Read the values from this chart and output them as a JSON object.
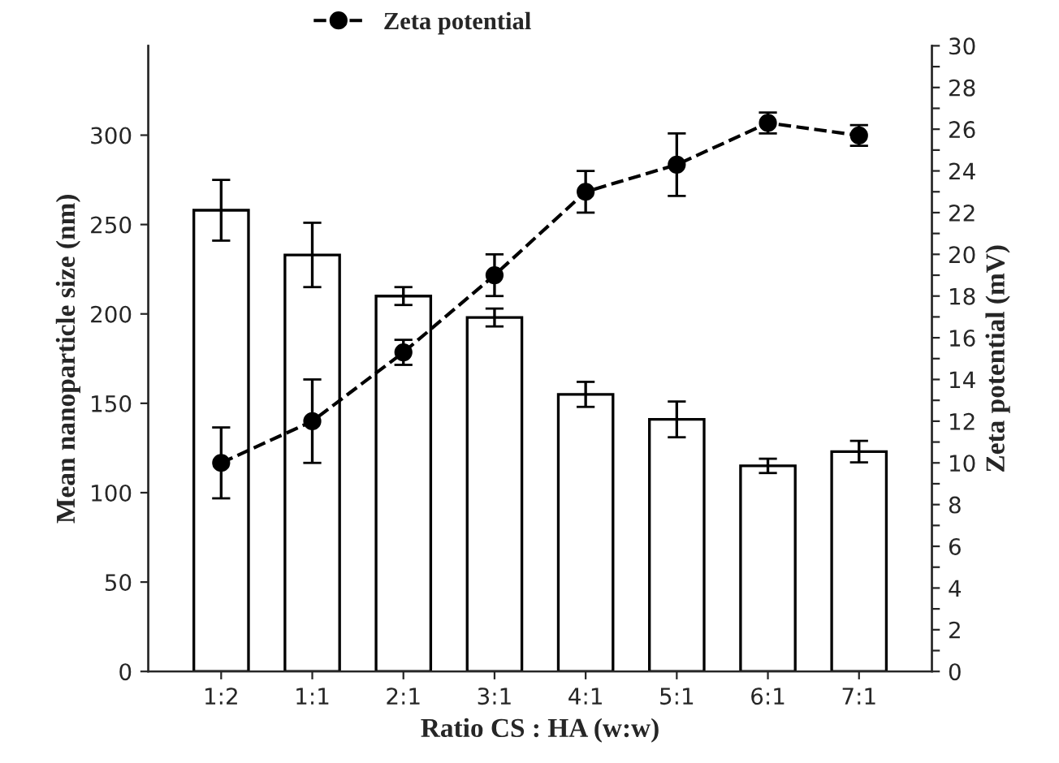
{
  "chart_data": {
    "type": "bar",
    "xlabel": "Ratio CS : HA (w:w)",
    "ylabel": "Mean nanoparticle size (nm)",
    "y2label": "Zeta potential (mV)",
    "categories": [
      "1:2",
      "1:1",
      "2:1",
      "3:1",
      "4:1",
      "5:1",
      "6:1",
      "7:1"
    ],
    "series": [
      {
        "color": "#ffffff",
        "values": [
          258,
          233,
          210,
          198,
          155,
          141,
          115,
          123
        ],
        "errors": [
          17,
          18,
          5,
          5,
          7,
          10,
          4,
          6
        ]
      },
      {
        "type": "line",
        "name": "Zeta potential",
        "axis": "y2",
        "color": "#000000",
        "marker": "circle",
        "line_style": "dashed",
        "values": [
          10.0,
          12.0,
          15.3,
          19.0,
          23.0,
          24.3,
          26.3,
          25.7
        ],
        "errors": [
          1.7,
          2.0,
          0.6,
          1.0,
          1.0,
          1.5,
          0.5,
          0.5
        ]
      }
    ],
    "ylim": [
      0,
      350
    ],
    "yticks": [
      0,
      50,
      100,
      150,
      200,
      250,
      300
    ],
    "y2lim": [
      0,
      30
    ],
    "y2ticks": [
      0,
      {
        "value": 1,
        "label": null
      },
      2,
      {
        "value": 3,
        "label": null
      },
      4,
      {
        "value": 5,
        "label": null
      },
      6,
      {
        "value": 7,
        "label": null
      },
      8,
      {
        "value": 9,
        "label": null
      },
      10,
      {
        "value": 11,
        "label": null
      },
      12,
      {
        "value": 13,
        "label": null
      },
      14,
      {
        "value": 15,
        "label": null
      },
      16,
      {
        "value": 17,
        "label": null
      },
      18,
      {
        "value": 19,
        "label": null
      },
      20,
      {
        "value": 21,
        "label": null
      },
      22,
      {
        "value": 23,
        "label": null
      },
      24,
      {
        "value": 25,
        "label": null
      },
      26,
      {
        "value": 27,
        "label": null
      },
      28,
      {
        "value": 29,
        "label": null
      },
      30
    ],
    "legend": "top",
    "grid": false
  }
}
